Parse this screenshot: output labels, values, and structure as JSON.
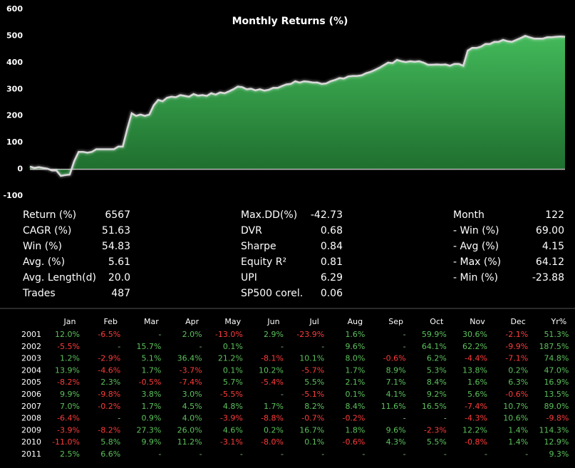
{
  "chart_data": {
    "type": "area",
    "title": "Monthly Returns (%)",
    "values": [
      10,
      5,
      8,
      5,
      2,
      -5,
      -5,
      -25,
      -22,
      -20,
      30,
      65,
      65,
      62,
      65,
      75,
      75,
      75,
      75,
      75,
      85,
      85,
      150,
      210,
      200,
      205,
      200,
      205,
      240,
      260,
      255,
      268,
      272,
      270,
      278,
      275,
      272,
      282,
      276,
      278,
      275,
      285,
      280,
      288,
      285,
      292,
      300,
      310,
      308,
      300,
      302,
      296,
      300,
      295,
      298,
      305,
      305,
      312,
      318,
      320,
      330,
      325,
      330,
      328,
      325,
      325,
      320,
      322,
      330,
      335,
      342,
      340,
      348,
      350,
      350,
      352,
      360,
      365,
      372,
      380,
      390,
      400,
      398,
      410,
      405,
      402,
      405,
      403,
      405,
      400,
      392,
      392,
      393,
      392,
      393,
      388,
      395,
      395,
      388,
      445,
      455,
      455,
      460,
      470,
      470,
      478,
      478,
      485,
      480,
      478,
      485,
      492,
      500,
      495,
      490,
      490,
      490,
      495,
      495,
      497,
      498,
      497
    ],
    "color": "#3aa84f",
    "line_color": "#d8d8d8",
    "ylim": [
      -100,
      600
    ],
    "yticks": [
      -100,
      0,
      100,
      200,
      300,
      400,
      500,
      600
    ],
    "grid": false
  },
  "stats": [
    [
      [
        "Return (%)",
        "6567"
      ],
      [
        "CAGR (%)",
        "51.63"
      ],
      [
        "Win (%)",
        "54.83"
      ],
      [
        "Avg. (%)",
        "5.61"
      ],
      [
        "Avg. Length(d)",
        "20.0"
      ],
      [
        "Trades",
        "487"
      ]
    ],
    [
      [
        "Max.DD(%)",
        "-42.73"
      ],
      [
        "DVR",
        "0.68"
      ],
      [
        "Sharpe",
        "0.84"
      ],
      [
        "Equity R²",
        "0.81"
      ],
      [
        "UPI",
        "6.29"
      ],
      [
        "SP500 corel.",
        "0.06"
      ]
    ],
    [
      [
        "Month",
        "122"
      ],
      [
        "- Win (%)",
        "69.00"
      ],
      [
        "- Avg (%)",
        "4.15"
      ],
      [
        "- Max (%)",
        "64.12"
      ],
      [
        "- Min (%)",
        "-23.88"
      ]
    ]
  ],
  "table": {
    "columns": [
      "Jan",
      "Feb",
      "Mar",
      "Apr",
      "May",
      "Jun",
      "Jul",
      "Aug",
      "Sep",
      "Oct",
      "Nov",
      "Dec",
      "Yr%"
    ],
    "rows": [
      [
        "2001",
        "12.0%",
        "-6.5%",
        "-",
        "2.0%",
        "-13.0%",
        "2.9%",
        "-23.9%",
        "1.6%",
        "-",
        "59.9%",
        "30.6%",
        "-2.1%",
        "51.3%"
      ],
      [
        "2002",
        "-5.5%",
        "-",
        "15.7%",
        "-",
        "0.1%",
        "-",
        "-",
        "9.6%",
        "-",
        "64.1%",
        "62.2%",
        "-9.9%",
        "187.5%"
      ],
      [
        "2003",
        "1.2%",
        "-2.9%",
        "5.1%",
        "36.4%",
        "21.2%",
        "-8.1%",
        "10.1%",
        "8.0%",
        "-0.6%",
        "6.2%",
        "-4.4%",
        "-7.1%",
        "74.8%"
      ],
      [
        "2004",
        "13.9%",
        "-4.6%",
        "1.7%",
        "-3.7%",
        "0.1%",
        "10.2%",
        "-5.7%",
        "1.7%",
        "8.9%",
        "5.3%",
        "13.8%",
        "0.2%",
        "47.0%"
      ],
      [
        "2005",
        "-8.2%",
        "2.3%",
        "-0.5%",
        "-7.4%",
        "5.7%",
        "-5.4%",
        "5.5%",
        "2.1%",
        "7.1%",
        "8.4%",
        "1.6%",
        "6.3%",
        "16.9%"
      ],
      [
        "2006",
        "9.9%",
        "-9.8%",
        "3.8%",
        "3.0%",
        "-5.5%",
        "-",
        "-5.1%",
        "0.1%",
        "4.1%",
        "9.2%",
        "5.6%",
        "-0.6%",
        "13.5%"
      ],
      [
        "2007",
        "7.0%",
        "-0.2%",
        "1.7%",
        "4.5%",
        "4.8%",
        "1.7%",
        "8.2%",
        "8.4%",
        "11.6%",
        "16.5%",
        "-7.4%",
        "10.7%",
        "89.0%"
      ],
      [
        "2008",
        "-6.4%",
        "-",
        "0.9%",
        "4.0%",
        "-3.9%",
        "-8.8%",
        "-0.7%",
        "-0.2%",
        "-",
        "-",
        "-4.3%",
        "10.6%",
        "-9.8%"
      ],
      [
        "2009",
        "-3.9%",
        "-8.2%",
        "27.3%",
        "26.0%",
        "4.6%",
        "0.2%",
        "16.7%",
        "1.8%",
        "9.6%",
        "-2.3%",
        "12.2%",
        "1.4%",
        "114.3%"
      ],
      [
        "2010",
        "-11.0%",
        "5.8%",
        "9.9%",
        "11.2%",
        "-3.1%",
        "-8.0%",
        "0.1%",
        "-0.6%",
        "4.3%",
        "5.5%",
        "-0.8%",
        "1.4%",
        "12.9%"
      ],
      [
        "2011",
        "2.5%",
        "6.6%",
        "-",
        "-",
        "-",
        "-",
        "-",
        "-",
        "-",
        "-",
        "-",
        "-",
        "9.3%"
      ]
    ]
  }
}
